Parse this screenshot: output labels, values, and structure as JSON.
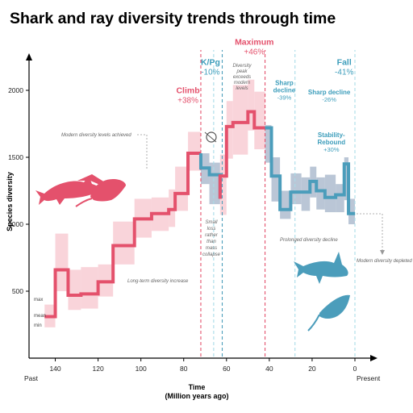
{
  "title": "Shark and ray diversity trends through time",
  "colors": {
    "rise": "#e4516c",
    "rise_band": "#f7c5cd",
    "fall": "#4b9dbb",
    "fall_band": "#a9b8cc",
    "modern_line": "#a8dbe8"
  },
  "chart_data": {
    "type": "line",
    "title": "Shark and ray diversity trends through time",
    "xlabel": "Time",
    "xlabel_sub": "(Million years ago)",
    "ylabel": "Species diversity",
    "xlim": [
      150,
      -2
    ],
    "ylim": [
      150,
      2200
    ],
    "x_reversed": true,
    "x_ticks": [
      "140",
      "120",
      "100",
      "80",
      "60",
      "40",
      "20",
      "0"
    ],
    "y_ticks": [
      "500",
      "1000",
      "1500",
      "2000"
    ],
    "x_end_labels": [
      "Past",
      "Present"
    ],
    "grid": false,
    "series": [
      {
        "color": "rise",
        "x": [
          145,
          140,
          140,
          134,
          134,
          128,
          128,
          120,
          120,
          113,
          113,
          103,
          103,
          95,
          95,
          87,
          87,
          84,
          84,
          78,
          78,
          72
        ],
        "y": [
          310,
          310,
          660,
          660,
          470,
          470,
          480,
          480,
          570,
          570,
          840,
          840,
          1040,
          1040,
          1080,
          1080,
          1110,
          1110,
          1230,
          1230,
          1530,
          1530
        ]
      },
      {
        "color": "fall",
        "x": [
          72,
          72,
          68,
          68,
          63,
          63
        ],
        "y": [
          1530,
          1420,
          1420,
          1370,
          1370,
          1190
        ]
      },
      {
        "color": "rise",
        "x": [
          63,
          63,
          60,
          60,
          57,
          57,
          50,
          50,
          47,
          47,
          42
        ],
        "y": [
          1190,
          1360,
          1360,
          1730,
          1730,
          1760,
          1760,
          1840,
          1840,
          1720,
          1720
        ]
      },
      {
        "color": "fall",
        "x": [
          42,
          39,
          39,
          35,
          35,
          30,
          30,
          25,
          25,
          21,
          21,
          18,
          18,
          14,
          14,
          9,
          9,
          5,
          5,
          3,
          3,
          0
        ],
        "y": [
          1720,
          1720,
          1360,
          1360,
          1110,
          1110,
          1240,
          1240,
          1240,
          1240,
          1320,
          1320,
          1250,
          1250,
          1200,
          1200,
          1220,
          1220,
          1450,
          1450,
          1080,
          1080
        ]
      }
    ],
    "bands": [
      {
        "color": "rise",
        "x0": 145,
        "x1": 140,
        "lo": 230,
        "hi": 400
      },
      {
        "color": "rise",
        "x0": 140,
        "x1": 134,
        "lo": 500,
        "hi": 930
      },
      {
        "color": "rise",
        "x0": 134,
        "x1": 128,
        "lo": 360,
        "hi": 660
      },
      {
        "color": "rise",
        "x0": 128,
        "x1": 120,
        "lo": 370,
        "hi": 680
      },
      {
        "color": "rise",
        "x0": 120,
        "x1": 113,
        "lo": 460,
        "hi": 700
      },
      {
        "color": "rise",
        "x0": 113,
        "x1": 103,
        "lo": 700,
        "hi": 1020
      },
      {
        "color": "rise",
        "x0": 103,
        "x1": 95,
        "lo": 900,
        "hi": 1190
      },
      {
        "color": "rise",
        "x0": 95,
        "x1": 87,
        "lo": 950,
        "hi": 1200
      },
      {
        "color": "rise",
        "x0": 87,
        "x1": 84,
        "lo": 980,
        "hi": 1260
      },
      {
        "color": "rise",
        "x0": 84,
        "x1": 78,
        "lo": 1100,
        "hi": 1430
      },
      {
        "color": "rise",
        "x0": 78,
        "x1": 72,
        "lo": 1400,
        "hi": 1690
      },
      {
        "color": "fall",
        "x0": 72,
        "x1": 68,
        "lo": 1300,
        "hi": 1530
      },
      {
        "color": "fall",
        "x0": 68,
        "x1": 63,
        "lo": 1150,
        "hi": 1460
      },
      {
        "color": "rise",
        "x0": 63,
        "x1": 60,
        "lo": 1070,
        "hi": 1520
      },
      {
        "color": "rise",
        "x0": 60,
        "x1": 57,
        "lo": 1490,
        "hi": 1920
      },
      {
        "color": "rise",
        "x0": 57,
        "x1": 50,
        "lo": 1520,
        "hi": 2040
      },
      {
        "color": "rise",
        "x0": 50,
        "x1": 47,
        "lo": 1700,
        "hi": 2080
      },
      {
        "color": "rise",
        "x0": 47,
        "x1": 42,
        "lo": 1560,
        "hi": 1990
      },
      {
        "color": "fall",
        "x0": 42,
        "x1": 39,
        "lo": 1460,
        "hi": 1740
      },
      {
        "color": "fall",
        "x0": 39,
        "x1": 35,
        "lo": 1170,
        "hi": 1500
      },
      {
        "color": "fall",
        "x0": 35,
        "x1": 30,
        "lo": 1040,
        "hi": 1250
      },
      {
        "color": "fall",
        "x0": 30,
        "x1": 25,
        "lo": 1150,
        "hi": 1380
      },
      {
        "color": "fall",
        "x0": 25,
        "x1": 21,
        "lo": 1100,
        "hi": 1350
      },
      {
        "color": "fall",
        "x0": 21,
        "x1": 18,
        "lo": 1200,
        "hi": 1430
      },
      {
        "color": "fall",
        "x0": 18,
        "x1": 14,
        "lo": 1110,
        "hi": 1350
      },
      {
        "color": "fall",
        "x0": 14,
        "x1": 9,
        "lo": 1090,
        "hi": 1370
      },
      {
        "color": "fall",
        "x0": 9,
        "x1": 5,
        "lo": 1090,
        "hi": 1300
      },
      {
        "color": "fall",
        "x0": 5,
        "x1": 3,
        "lo": 1180,
        "hi": 1500
      },
      {
        "color": "fall",
        "x0": 3,
        "x1": 0,
        "lo": 1000,
        "hi": 1190
      }
    ],
    "vlines": [
      {
        "x": 72,
        "color": "rise"
      },
      {
        "x": 66,
        "color": "modern"
      },
      {
        "x": 62,
        "color": "fall"
      },
      {
        "x": 42,
        "color": "rise"
      },
      {
        "x": 28,
        "color": "modern"
      },
      {
        "x": 0,
        "color": "modern"
      }
    ],
    "events": [
      {
        "label": "Climb",
        "pct": "+38%",
        "x": 78,
        "y": 1980,
        "style": "rise",
        "anchor": "middle"
      },
      {
        "label": "K/Pg",
        "pct": "-10%",
        "x": 67.5,
        "y": 2190,
        "style": "fall",
        "anchor": "middle"
      },
      {
        "label": "Maximum",
        "pct": "+46%",
        "x": 47,
        "y": 2340,
        "style": "rise",
        "anchor": "middle"
      },
      {
        "label": "Fall",
        "pct": "-41%",
        "x": 5,
        "y": 2190,
        "style": "fall",
        "anchor": "middle"
      }
    ],
    "small_events": [
      {
        "lines": [
          "Sharp",
          "decline"
        ],
        "pct": "-39%",
        "x": 33,
        "y": 2040
      },
      {
        "lines": [
          "Sharp decline"
        ],
        "pct": "-26%",
        "x": 12,
        "y": 1970
      },
      {
        "lines": [
          "Stability-",
          "Rebound"
        ],
        "pct": "+30%",
        "x": 11,
        "y": 1650
      }
    ],
    "annotations": {
      "modern_levels": "Modern diversity levels achieved",
      "peak_exceeds": [
        "Diversity",
        "peak",
        "exceeds",
        "modern",
        "levels"
      ],
      "small_loss": [
        "Small",
        "loss",
        "rather",
        "than",
        "mass",
        "collapse"
      ],
      "long_term": "Long-term diversity increase",
      "prolonged": "Prolonged diversity decline",
      "depleted": "Modern diversity depleted"
    },
    "legend_keys": [
      "max",
      "mean",
      "min"
    ]
  }
}
